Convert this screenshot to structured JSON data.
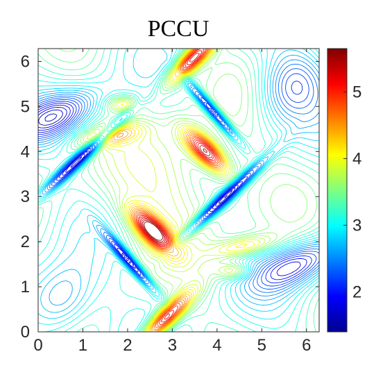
{
  "chart_data": {
    "type": "contour",
    "title": "PCCU",
    "xlabel": "",
    "ylabel": "",
    "xlim": [
      0,
      6.2832
    ],
    "ylim": [
      0,
      6.2832
    ],
    "xticks": [
      0,
      1,
      2,
      3,
      4,
      5,
      6
    ],
    "yticks": [
      0,
      1,
      2,
      3,
      4,
      5,
      6
    ],
    "grid": false,
    "colormap": "jet",
    "colorbar": {
      "min": 1.4,
      "max": 5.65,
      "ticks": [
        2,
        3,
        4,
        5
      ]
    },
    "features": [
      {
        "name": "density peak upper",
        "x": 3.75,
        "y": 4.0,
        "value": 5.6
      },
      {
        "name": "density peak lower",
        "x": 2.55,
        "y": 2.25,
        "value": 5.6
      },
      {
        "name": "top ridge",
        "x": 3.45,
        "y": 6.1,
        "value": 5.6
      },
      {
        "name": "bottom ridge",
        "x": 2.9,
        "y": 0.25,
        "value": 5.6
      },
      {
        "name": "shock NE",
        "x": 4.2,
        "y": 3.0,
        "value": 1.5
      },
      {
        "name": "shock SW",
        "x": 1.0,
        "y": 3.9,
        "value": 1.5
      },
      {
        "name": "shock NW corner",
        "x": 0.4,
        "y": 4.8,
        "value": 1.5
      },
      {
        "name": "shock SE corner",
        "x": 5.8,
        "y": 1.5,
        "value": 1.5
      }
    ]
  }
}
